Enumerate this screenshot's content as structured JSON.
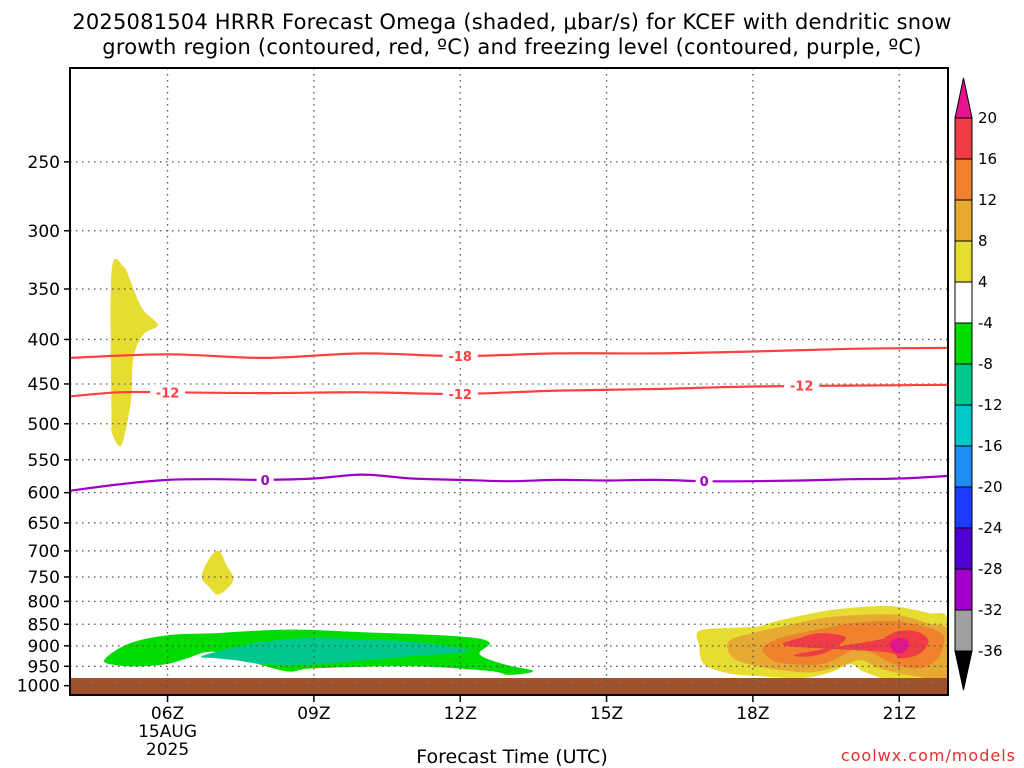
{
  "chart_data": {
    "type": "time-height contour",
    "title_line1": "2025081504 HRRR Forecast Omega (shaded, μbar/s) for KCEF with dendritic snow",
    "title_line2": "growth region (contoured, red, ºC) and freezing level (contoured, purple, ºC)",
    "xlabel": "Forecast Time (UTC)",
    "ylabel": "",
    "x_ticks": [
      {
        "hour": 6,
        "label": "06Z",
        "sub1": "15AUG",
        "sub2": "2025"
      },
      {
        "hour": 9,
        "label": "09Z",
        "sub1": "",
        "sub2": ""
      },
      {
        "hour": 12,
        "label": "12Z",
        "sub1": "",
        "sub2": ""
      },
      {
        "hour": 15,
        "label": "15Z",
        "sub1": "",
        "sub2": ""
      },
      {
        "hour": 18,
        "label": "18Z",
        "sub1": "",
        "sub2": ""
      },
      {
        "hour": 21,
        "label": "21Z",
        "sub1": "",
        "sub2": ""
      }
    ],
    "xlim_hours": [
      4,
      22
    ],
    "y_ticks": [
      250,
      300,
      350,
      400,
      450,
      500,
      550,
      600,
      650,
      700,
      750,
      800,
      850,
      900,
      950,
      1000
    ],
    "ylim_hPa": [
      195,
      1025
    ],
    "y_scale": "log-pressure (inverted)",
    "grid": true,
    "surface_fill_color": "#a0522d",
    "contours": [
      {
        "value": -18,
        "label": "-18",
        "color": "#ff4040",
        "points": [
          [
            4,
            420
          ],
          [
            6,
            416
          ],
          [
            8,
            420
          ],
          [
            10,
            415
          ],
          [
            12,
            418
          ],
          [
            14,
            415
          ],
          [
            16,
            415
          ],
          [
            18,
            413
          ],
          [
            20,
            410
          ],
          [
            22,
            409
          ]
        ],
        "label_at": [
          [
            12,
            418
          ]
        ]
      },
      {
        "value": -12,
        "label": "-12",
        "color": "#ff4040",
        "points": [
          [
            4,
            465
          ],
          [
            5,
            460
          ],
          [
            6,
            460
          ],
          [
            8,
            461
          ],
          [
            10,
            460
          ],
          [
            12,
            462
          ],
          [
            14,
            458
          ],
          [
            16,
            456
          ],
          [
            18,
            453
          ],
          [
            20,
            452
          ],
          [
            22,
            451
          ]
        ],
        "label_at": [
          [
            6,
            460
          ],
          [
            12,
            462
          ],
          [
            19,
            452
          ]
        ]
      },
      {
        "value": 0,
        "label": "0",
        "color": "#9f00c5",
        "points": [
          [
            4,
            597
          ],
          [
            5,
            587
          ],
          [
            6,
            580
          ],
          [
            7,
            579
          ],
          [
            8,
            580
          ],
          [
            9,
            578
          ],
          [
            10,
            572
          ],
          [
            11,
            578
          ],
          [
            12,
            580
          ],
          [
            13,
            582
          ],
          [
            14,
            580
          ],
          [
            15,
            581
          ],
          [
            16,
            580
          ],
          [
            17,
            582
          ],
          [
            18,
            582
          ],
          [
            19,
            581
          ],
          [
            20,
            579
          ],
          [
            21,
            578
          ],
          [
            22,
            574
          ]
        ],
        "label_at": [
          [
            8,
            580
          ],
          [
            17,
            582
          ]
        ]
      }
    ],
    "shaded_regions": [
      {
        "level": "4 to 8",
        "color": "#e6dc32",
        "points": [
          [
            4.85,
            490
          ],
          [
            4.85,
            335
          ],
          [
            5.1,
            330
          ],
          [
            5.3,
            350
          ],
          [
            5.5,
            370
          ],
          [
            5.8,
            385
          ],
          [
            5.5,
            395
          ],
          [
            5.3,
            420
          ],
          [
            5.25,
            470
          ],
          [
            5.1,
            520
          ],
          [
            5.0,
            530
          ],
          [
            4.85,
            510
          ]
        ]
      },
      {
        "level": "4 to 8",
        "color": "#e6dc32",
        "points": [
          [
            6.7,
            750
          ],
          [
            6.85,
            715
          ],
          [
            7.05,
            700
          ],
          [
            7.2,
            725
          ],
          [
            7.35,
            755
          ],
          [
            7.15,
            780
          ],
          [
            7.0,
            785
          ],
          [
            6.85,
            770
          ]
        ]
      },
      {
        "level": "-8 to -4",
        "color": "#00dc00",
        "points": [
          [
            4.7,
            935
          ],
          [
            5.2,
            895
          ],
          [
            6,
            875
          ],
          [
            7,
            870
          ],
          [
            8.5,
            862
          ],
          [
            10,
            868
          ],
          [
            12,
            878
          ],
          [
            12.6,
            892
          ],
          [
            12.4,
            920
          ],
          [
            12.9,
            945
          ],
          [
            13.5,
            962
          ],
          [
            13,
            972
          ],
          [
            12.6,
            962
          ],
          [
            11,
            950
          ],
          [
            9,
            955
          ],
          [
            8.4,
            962
          ],
          [
            7.2,
            920
          ],
          [
            6.8,
            915
          ],
          [
            6.4,
            930
          ],
          [
            6,
            944
          ],
          [
            5.5,
            950
          ],
          [
            5,
            948
          ]
        ]
      },
      {
        "level": "-12 to -8",
        "color": "#00c88c",
        "points": [
          [
            6.7,
            925
          ],
          [
            7.5,
            900
          ],
          [
            8,
            890
          ],
          [
            9,
            880
          ],
          [
            10,
            885
          ],
          [
            11,
            890
          ],
          [
            12,
            905
          ],
          [
            12.1,
            915
          ],
          [
            11,
            925
          ],
          [
            10,
            935
          ],
          [
            9,
            945
          ],
          [
            8,
            945
          ],
          [
            7.4,
            935
          ],
          [
            7,
            930
          ]
        ]
      },
      {
        "level": "4 to 8",
        "color": "#e6dc32",
        "points": [
          [
            16.9,
            865
          ],
          [
            17.6,
            858
          ],
          [
            18.1,
            855
          ],
          [
            18.6,
            840
          ],
          [
            19.5,
            820
          ],
          [
            20.5,
            810
          ],
          [
            21,
            812
          ],
          [
            21.6,
            825
          ],
          [
            22,
            840
          ],
          [
            22,
            985
          ],
          [
            21,
            990
          ],
          [
            20.3,
            965
          ],
          [
            20,
            945
          ],
          [
            19.6,
            965
          ],
          [
            19,
            980
          ],
          [
            18.1,
            975
          ],
          [
            17.5,
            968
          ],
          [
            17,
            945
          ],
          [
            16.9,
            900
          ]
        ]
      },
      {
        "level": "8 to 12",
        "color": "#e6aa32",
        "points": [
          [
            17.5,
            890
          ],
          [
            18,
            870
          ],
          [
            18.6,
            855
          ],
          [
            19.5,
            835
          ],
          [
            20.5,
            828
          ],
          [
            21,
            830
          ],
          [
            21.6,
            848
          ],
          [
            22,
            865
          ],
          [
            22,
            975
          ],
          [
            21.3,
            975
          ],
          [
            20.6,
            955
          ],
          [
            20.2,
            935
          ],
          [
            19.8,
            950
          ],
          [
            19.2,
            965
          ],
          [
            18.6,
            960
          ],
          [
            18.1,
            950
          ],
          [
            17.6,
            930
          ]
        ]
      },
      {
        "level": "12 to 16",
        "color": "#f0822d",
        "points": [
          [
            18.2,
            905
          ],
          [
            18.6,
            880
          ],
          [
            19.2,
            865
          ],
          [
            20,
            848
          ],
          [
            20.8,
            843
          ],
          [
            21.4,
            852
          ],
          [
            21.9,
            875
          ],
          [
            21.8,
            930
          ],
          [
            21.4,
            955
          ],
          [
            20.9,
            945
          ],
          [
            20.4,
            915
          ],
          [
            20.1,
            908
          ],
          [
            19.8,
            925
          ],
          [
            19.4,
            945
          ],
          [
            18.8,
            945
          ],
          [
            18.4,
            935
          ]
        ]
      },
      {
        "level": "16 to 20",
        "color": "#f03c46",
        "points": [
          [
            18.7,
            900
          ],
          [
            19,
            880
          ],
          [
            19.4,
            870
          ],
          [
            19.9,
            880
          ],
          [
            19.6,
            910
          ],
          [
            19.2,
            925
          ],
          [
            18.9,
            920
          ],
          [
            20.6,
            885
          ],
          [
            20.7,
            880
          ],
          [
            21,
            865
          ],
          [
            21.4,
            868
          ],
          [
            21.6,
            890
          ],
          [
            21.4,
            920
          ],
          [
            21,
            930
          ],
          [
            20.7,
            915
          ]
        ]
      },
      {
        "level": "> 20",
        "color": "#e6148c",
        "points": [
          [
            20.8,
            895
          ],
          [
            20.95,
            882
          ],
          [
            21.15,
            885
          ],
          [
            21.2,
            900
          ],
          [
            21.1,
            915
          ],
          [
            20.95,
            918
          ],
          [
            20.85,
            908
          ]
        ]
      }
    ],
    "colorbar": {
      "ticks": [
        "20",
        "16",
        "12",
        "8",
        "4",
        "-4",
        "-8",
        "-12",
        "-16",
        "-20",
        "-24",
        "-28",
        "-32",
        "-36"
      ],
      "top_arrow_color": "#e6148c",
      "bottom_arrow_color": "#000000",
      "bins": [
        {
          "color": "#f03c46"
        },
        {
          "color": "#f0822d"
        },
        {
          "color": "#e6aa32"
        },
        {
          "color": "#e6dc32"
        },
        {
          "color": "#ffffff"
        },
        {
          "color": "#00dc00"
        },
        {
          "color": "#00c88c"
        },
        {
          "color": "#00c8c8"
        },
        {
          "color": "#1e8cf0"
        },
        {
          "color": "#1e3cff"
        },
        {
          "color": "#5000d2"
        },
        {
          "color": "#a000c8"
        },
        {
          "color": "#a0a0a0"
        }
      ]
    }
  },
  "watermark": "coolwx.com/models"
}
